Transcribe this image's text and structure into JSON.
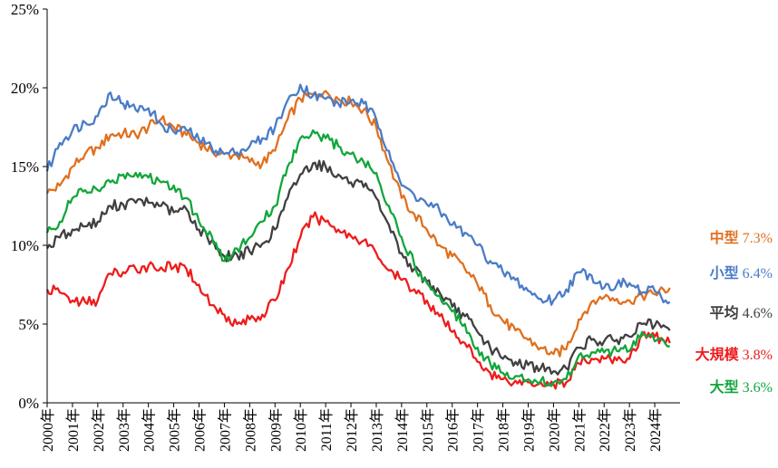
{
  "chart_data": {
    "type": "line",
    "title": "",
    "xlabel": "",
    "ylabel": "",
    "ylim": [
      0,
      25
    ],
    "y_ticks": [
      "0%",
      "5%",
      "10%",
      "15%",
      "20%",
      "25%"
    ],
    "x_ticks": [
      "2000年",
      "2001年",
      "2002年",
      "2003年",
      "2004年",
      "2005年",
      "2006年",
      "2007年",
      "2008年",
      "2009年",
      "2010年",
      "2011年",
      "2012年",
      "2013年",
      "2014年",
      "2015年",
      "2016年",
      "2017年",
      "2018年",
      "2019年",
      "2020年",
      "2021年",
      "2022年",
      "2023年",
      "2024年"
    ],
    "grid": false,
    "legend": "end-labels-right",
    "series": [
      {
        "name": "中型",
        "end_value": "7.3%",
        "color": "#E07020",
        "points": [
          [
            2000,
            13.3
          ],
          [
            2000.5,
            13.8
          ],
          [
            2001,
            15.0
          ],
          [
            2001.5,
            15.8
          ],
          [
            2002,
            16.2
          ],
          [
            2002.5,
            17.0
          ],
          [
            2003,
            17.1
          ],
          [
            2003.5,
            17.0
          ],
          [
            2004,
            17.5
          ],
          [
            2004.5,
            18.0
          ],
          [
            2005,
            17.5
          ],
          [
            2005.5,
            17.0
          ],
          [
            2006,
            16.5
          ],
          [
            2006.5,
            16.0
          ],
          [
            2007,
            15.8
          ],
          [
            2007.5,
            15.7
          ],
          [
            2008,
            15.3
          ],
          [
            2008.5,
            15.2
          ],
          [
            2009,
            16.0
          ],
          [
            2009.5,
            18.0
          ],
          [
            2010,
            19.3
          ],
          [
            2010.5,
            19.6
          ],
          [
            2011,
            19.8
          ],
          [
            2011.5,
            19.3
          ],
          [
            2012,
            19.1
          ],
          [
            2012.5,
            18.6
          ],
          [
            2013,
            17.5
          ],
          [
            2013.5,
            15.2
          ],
          [
            2014,
            13.0
          ],
          [
            2014.5,
            12.0
          ],
          [
            2015,
            11.0
          ],
          [
            2015.5,
            10.0
          ],
          [
            2016,
            9.3
          ],
          [
            2016.5,
            8.5
          ],
          [
            2017,
            7.5
          ],
          [
            2017.5,
            6.2
          ],
          [
            2018,
            5.2
          ],
          [
            2018.5,
            4.6
          ],
          [
            2019,
            4.0
          ],
          [
            2019.5,
            3.5
          ],
          [
            2020,
            3.1
          ],
          [
            2020.5,
            3.4
          ],
          [
            2021,
            5.3
          ],
          [
            2021.5,
            6.4
          ],
          [
            2022,
            6.7
          ],
          [
            2022.5,
            6.6
          ],
          [
            2023,
            6.5
          ],
          [
            2023.5,
            6.8
          ],
          [
            2024,
            6.9
          ],
          [
            2024.6,
            7.3
          ]
        ]
      },
      {
        "name": "小型",
        "end_value": "6.4%",
        "color": "#4A7CC6",
        "points": [
          [
            2000,
            14.7
          ],
          [
            2000.5,
            16.5
          ],
          [
            2001,
            17.3
          ],
          [
            2001.5,
            17.8
          ],
          [
            2002,
            18.2
          ],
          [
            2002.5,
            19.7
          ],
          [
            2003,
            19.0
          ],
          [
            2003.5,
            18.6
          ],
          [
            2004,
            18.7
          ],
          [
            2004.5,
            17.7
          ],
          [
            2005,
            17.2
          ],
          [
            2005.5,
            17.3
          ],
          [
            2006,
            16.7
          ],
          [
            2006.5,
            16.2
          ],
          [
            2007,
            15.8
          ],
          [
            2007.5,
            15.9
          ],
          [
            2008,
            16.3
          ],
          [
            2008.5,
            16.8
          ],
          [
            2009,
            17.5
          ],
          [
            2009.5,
            19.2
          ],
          [
            2010,
            20.2
          ],
          [
            2010.5,
            19.5
          ],
          [
            2011,
            19.3
          ],
          [
            2011.5,
            19.0
          ],
          [
            2012,
            19.2
          ],
          [
            2012.5,
            19.0
          ],
          [
            2013,
            18.0
          ],
          [
            2013.5,
            16.0
          ],
          [
            2014,
            13.8
          ],
          [
            2014.5,
            13.2
          ],
          [
            2015,
            12.6
          ],
          [
            2015.5,
            12.2
          ],
          [
            2016,
            11.3
          ],
          [
            2016.5,
            10.8
          ],
          [
            2017,
            10.0
          ],
          [
            2017.5,
            9.0
          ],
          [
            2018,
            8.3
          ],
          [
            2018.5,
            7.8
          ],
          [
            2019,
            7.1
          ],
          [
            2019.5,
            6.6
          ],
          [
            2020,
            6.5
          ],
          [
            2020.5,
            7.2
          ],
          [
            2021,
            8.3
          ],
          [
            2021.5,
            8.1
          ],
          [
            2022,
            7.3
          ],
          [
            2022.5,
            7.5
          ],
          [
            2023,
            7.6
          ],
          [
            2023.5,
            7.0
          ],
          [
            2024,
            7.1
          ],
          [
            2024.6,
            6.4
          ]
        ]
      },
      {
        "name": "平均",
        "end_value": "4.6%",
        "color": "#404040",
        "points": [
          [
            2000,
            9.8
          ],
          [
            2000.5,
            10.5
          ],
          [
            2001,
            11.0
          ],
          [
            2001.5,
            11.2
          ],
          [
            2002,
            11.5
          ],
          [
            2002.5,
            12.5
          ],
          [
            2003,
            12.6
          ],
          [
            2003.5,
            12.7
          ],
          [
            2004,
            12.7
          ],
          [
            2004.5,
            12.5
          ],
          [
            2005,
            12.1
          ],
          [
            2005.5,
            12.3
          ],
          [
            2006,
            11.0
          ],
          [
            2006.5,
            10.3
          ],
          [
            2007,
            9.3
          ],
          [
            2007.5,
            9.4
          ],
          [
            2008,
            9.6
          ],
          [
            2008.5,
            10.1
          ],
          [
            2009,
            11.0
          ],
          [
            2009.5,
            13.0
          ],
          [
            2010,
            14.5
          ],
          [
            2010.5,
            15.2
          ],
          [
            2011,
            15.0
          ],
          [
            2011.5,
            14.5
          ],
          [
            2012,
            14.0
          ],
          [
            2012.5,
            13.7
          ],
          [
            2013,
            13.0
          ],
          [
            2013.5,
            11.3
          ],
          [
            2014,
            9.5
          ],
          [
            2014.5,
            8.5
          ],
          [
            2015,
            7.7
          ],
          [
            2015.5,
            7.0
          ],
          [
            2016,
            6.1
          ],
          [
            2016.5,
            5.5
          ],
          [
            2017,
            4.5
          ],
          [
            2017.5,
            3.5
          ],
          [
            2018,
            2.8
          ],
          [
            2018.5,
            2.6
          ],
          [
            2019,
            2.4
          ],
          [
            2019.5,
            2.2
          ],
          [
            2020,
            2.0
          ],
          [
            2020.5,
            2.2
          ],
          [
            2021,
            3.5
          ],
          [
            2021.5,
            4.0
          ],
          [
            2022,
            3.9
          ],
          [
            2022.5,
            4.0
          ],
          [
            2023,
            4.2
          ],
          [
            2023.5,
            5.0
          ],
          [
            2024,
            4.9
          ],
          [
            2024.6,
            4.6
          ]
        ]
      },
      {
        "name": "大規模",
        "end_value": "3.8%",
        "color": "#EE1C1C",
        "points": [
          [
            2000,
            7.2
          ],
          [
            2000.5,
            7.0
          ],
          [
            2001,
            6.5
          ],
          [
            2001.5,
            6.4
          ],
          [
            2002,
            6.5
          ],
          [
            2002.5,
            8.2
          ],
          [
            2003,
            8.3
          ],
          [
            2003.5,
            8.5
          ],
          [
            2004,
            8.7
          ],
          [
            2004.5,
            8.6
          ],
          [
            2005,
            8.6
          ],
          [
            2005.5,
            8.5
          ],
          [
            2006,
            7.5
          ],
          [
            2006.5,
            6.2
          ],
          [
            2007,
            5.6
          ],
          [
            2007.5,
            5.0
          ],
          [
            2008,
            5.3
          ],
          [
            2008.5,
            5.6
          ],
          [
            2009,
            6.5
          ],
          [
            2009.5,
            8.5
          ],
          [
            2010,
            10.5
          ],
          [
            2010.5,
            11.8
          ],
          [
            2011,
            11.5
          ],
          [
            2011.5,
            11.0
          ],
          [
            2012,
            10.6
          ],
          [
            2012.5,
            10.3
          ],
          [
            2013,
            9.5
          ],
          [
            2013.5,
            8.4
          ],
          [
            2014,
            7.8
          ],
          [
            2014.5,
            7.2
          ],
          [
            2015,
            6.5
          ],
          [
            2015.5,
            5.5
          ],
          [
            2016,
            4.5
          ],
          [
            2016.5,
            3.8
          ],
          [
            2017,
            2.6
          ],
          [
            2017.5,
            1.9
          ],
          [
            2018,
            1.5
          ],
          [
            2018.5,
            1.4
          ],
          [
            2019,
            1.3
          ],
          [
            2019.5,
            1.3
          ],
          [
            2020,
            1.2
          ],
          [
            2020.5,
            1.3
          ],
          [
            2021,
            2.5
          ],
          [
            2021.5,
            2.8
          ],
          [
            2022,
            2.8
          ],
          [
            2022.5,
            2.7
          ],
          [
            2023,
            2.8
          ],
          [
            2023.5,
            4.3
          ],
          [
            2024,
            4.2
          ],
          [
            2024.6,
            3.8
          ]
        ]
      },
      {
        "name": "大型",
        "end_value": "3.6%",
        "color": "#12A63C",
        "points": [
          [
            2000,
            10.8
          ],
          [
            2000.5,
            11.5
          ],
          [
            2001,
            13.0
          ],
          [
            2001.5,
            13.5
          ],
          [
            2002,
            13.5
          ],
          [
            2002.5,
            14.0
          ],
          [
            2003,
            14.5
          ],
          [
            2003.5,
            14.6
          ],
          [
            2004,
            14.3
          ],
          [
            2004.5,
            14.0
          ],
          [
            2005,
            13.8
          ],
          [
            2005.5,
            13.0
          ],
          [
            2006,
            11.5
          ],
          [
            2006.5,
            10.6
          ],
          [
            2007,
            9.0
          ],
          [
            2007.5,
            9.8
          ],
          [
            2008,
            10.5
          ],
          [
            2008.5,
            11.5
          ],
          [
            2009,
            12.5
          ],
          [
            2009.5,
            15.0
          ],
          [
            2010,
            16.8
          ],
          [
            2010.5,
            17.3
          ],
          [
            2011,
            16.8
          ],
          [
            2011.5,
            16.3
          ],
          [
            2012,
            15.8
          ],
          [
            2012.5,
            15.3
          ],
          [
            2013,
            14.6
          ],
          [
            2013.5,
            12.5
          ],
          [
            2014,
            10.5
          ],
          [
            2014.5,
            8.8
          ],
          [
            2015,
            7.6
          ],
          [
            2015.5,
            6.8
          ],
          [
            2016,
            5.8
          ],
          [
            2016.5,
            5.0
          ],
          [
            2017,
            3.5
          ],
          [
            2017.5,
            2.5
          ],
          [
            2018,
            1.9
          ],
          [
            2018.5,
            1.7
          ],
          [
            2019,
            1.5
          ],
          [
            2019.5,
            1.4
          ],
          [
            2020,
            1.3
          ],
          [
            2020.5,
            1.5
          ],
          [
            2021,
            3.0
          ],
          [
            2021.5,
            3.2
          ],
          [
            2022,
            3.2
          ],
          [
            2022.5,
            3.3
          ],
          [
            2023,
            3.3
          ],
          [
            2023.5,
            4.5
          ],
          [
            2024,
            3.9
          ],
          [
            2024.6,
            3.6
          ]
        ]
      }
    ]
  }
}
